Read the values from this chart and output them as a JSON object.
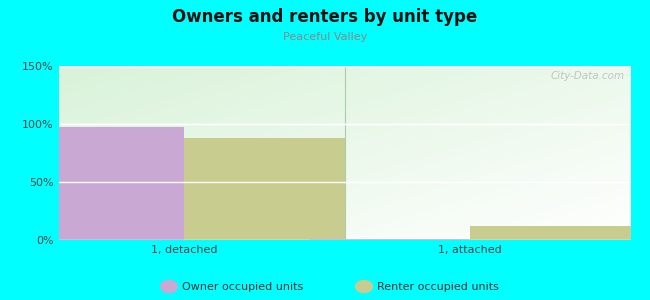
{
  "title": "Owners and renters by unit type",
  "subtitle": "Peaceful Valley",
  "categories": [
    "1, detached",
    "1, attached"
  ],
  "owner_values": [
    97,
    1
  ],
  "renter_values": [
    88,
    12
  ],
  "owner_color": "#c9a8d4",
  "renter_color": "#c8cc8f",
  "ylim": [
    0,
    150
  ],
  "yticks": [
    0,
    50,
    100,
    150
  ],
  "ytick_labels": [
    "0%",
    "50%",
    "100%",
    "150%"
  ],
  "background_color": "#00FFFF",
  "legend_labels": [
    "Owner occupied units",
    "Renter occupied units"
  ],
  "watermark": "City-Data.com",
  "bar_width": 0.28
}
